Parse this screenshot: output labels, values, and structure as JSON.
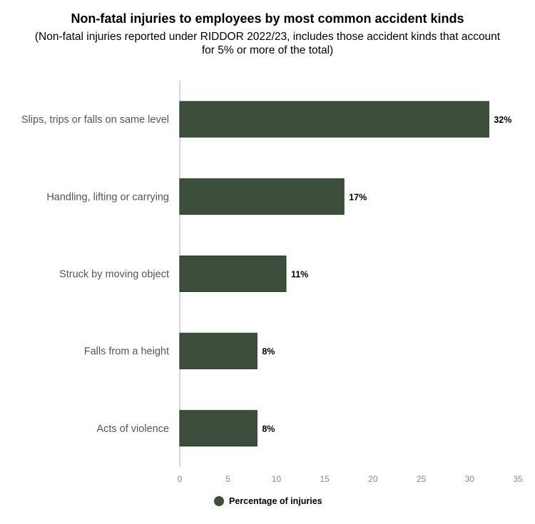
{
  "chart_data": {
    "type": "bar",
    "orientation": "horizontal",
    "title": "Non-fatal injuries to employees by most common accident kinds",
    "subtitle": "(Non-fatal injuries reported under RIDDOR 2022/23, includes those accident kinds that account for 5% or more of the total)",
    "categories": [
      "Slips, trips or falls on same level",
      "Handling, lifting or carrying",
      "Struck by moving object",
      "Falls from a height",
      "Acts of violence"
    ],
    "series": [
      {
        "name": "Percentage of injuries",
        "values": [
          32,
          17,
          11,
          8,
          8
        ]
      }
    ],
    "data_labels": [
      "32%",
      "17%",
      "11%",
      "8%",
      "8%"
    ],
    "xlim": [
      0,
      35
    ],
    "xticks": [
      "0",
      "5",
      "10",
      "15",
      "20",
      "25",
      "30",
      "35"
    ],
    "grid": false,
    "legend": "bottom",
    "colors": {
      "bar": "#3d4f3c",
      "bar_border": "#1f3a1d",
      "axis": "#d6d6ee"
    }
  }
}
